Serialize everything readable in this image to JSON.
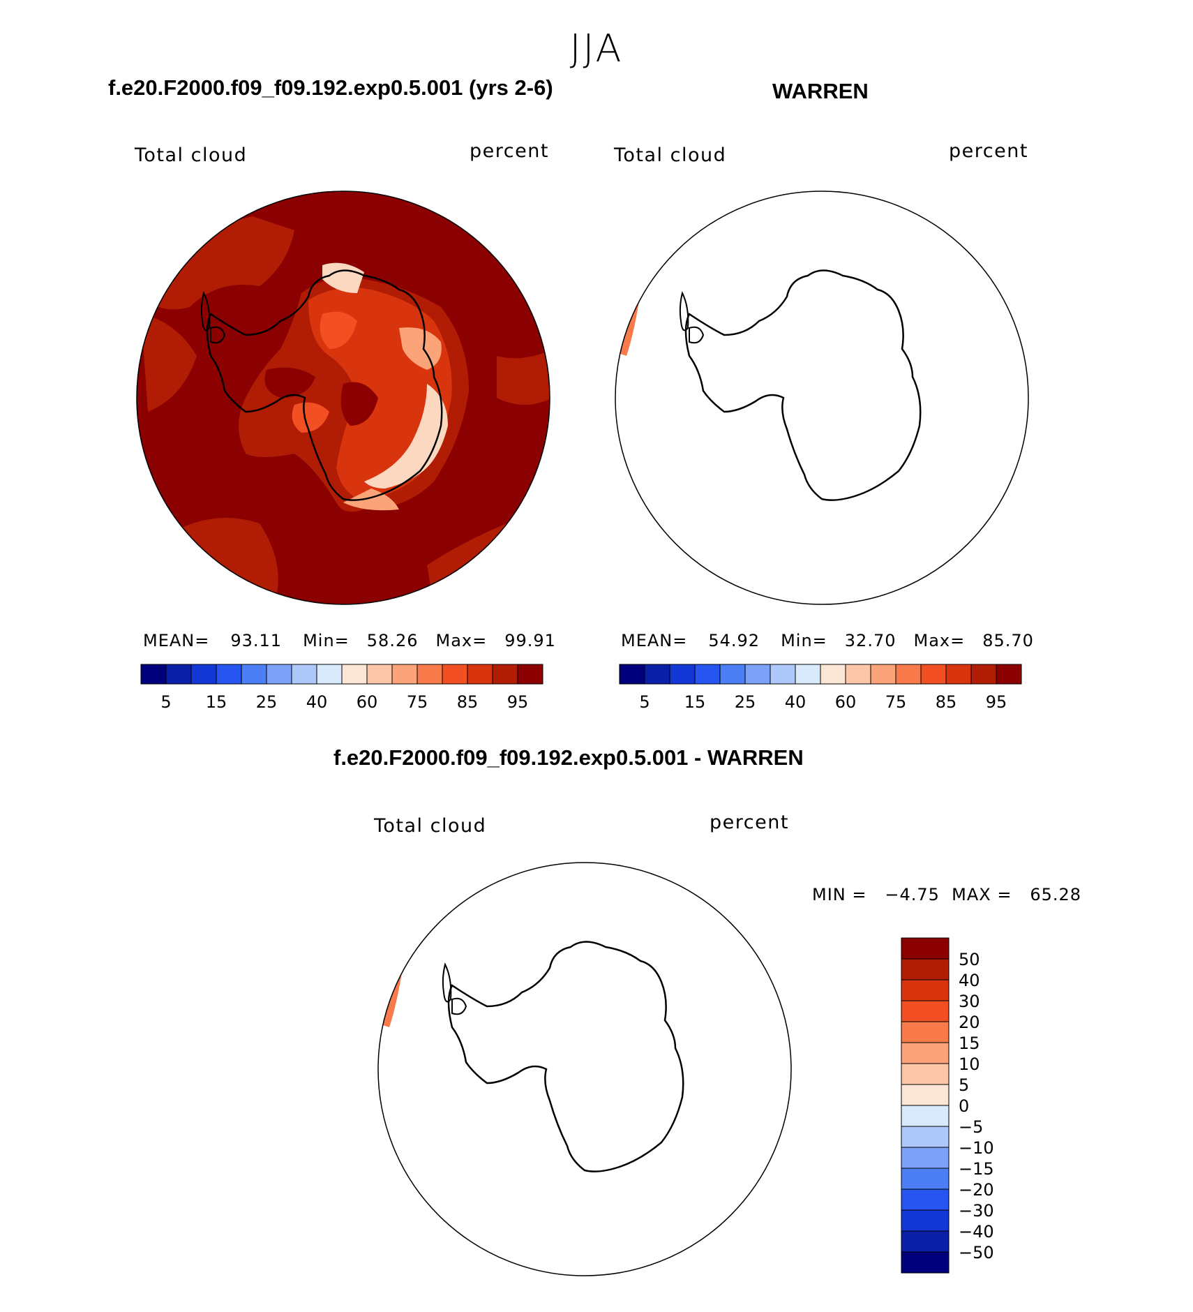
{
  "main_title": "JJA",
  "panel_left": {
    "title": "f.e20.F2000.f09_f09.192.exp0.5.001 (yrs 2-6)",
    "variable": "Total cloud",
    "units": "percent",
    "stats": {
      "mean_label": "MEAN=",
      "mean": "93.11",
      "min_label": "Min=",
      "min": "58.26",
      "max_label": "Max=",
      "max": "99.91"
    }
  },
  "panel_right": {
    "title": "WARREN",
    "variable": "Total cloud",
    "units": "percent",
    "stats": {
      "mean_label": "MEAN=",
      "mean": "54.92",
      "min_label": "Min=",
      "min": "32.70",
      "max_label": "Max=",
      "max": "85.70"
    }
  },
  "panel_diff": {
    "title": "f.e20.F2000.f09_f09.192.exp0.5.001 - WARREN",
    "variable": "Total cloud",
    "units": "percent",
    "minmax_text": "MIN =   −4.75  MAX =   65.28"
  },
  "abs_colorbar": {
    "colors": [
      "#00007a",
      "#0a1fa6",
      "#1337d6",
      "#2655f2",
      "#4c7ef6",
      "#7ba2f8",
      "#aec8fa",
      "#d9eafc",
      "#fbe6d6",
      "#fcc6a8",
      "#fba47a",
      "#f97a4a",
      "#f24f23",
      "#d8350e",
      "#b11c05",
      "#8b0000"
    ],
    "labels": [
      "5",
      "15",
      "25",
      "40",
      "60",
      "75",
      "85",
      "95"
    ]
  },
  "diff_colorbar": {
    "colors_top_to_bottom": [
      "#8b0000",
      "#b11c05",
      "#d8350e",
      "#f24f23",
      "#f97a4a",
      "#fba47a",
      "#fcc6a8",
      "#fbe6d6",
      "#d9eafc",
      "#aec8fa",
      "#7ba2f8",
      "#4c7ef6",
      "#2655f2",
      "#1337d6",
      "#0a1fa6",
      "#00007a"
    ],
    "labels": [
      "50",
      "40",
      "30",
      "20",
      "15",
      "10",
      "5",
      "0",
      "−5",
      "−10",
      "−15",
      "−20",
      "−30",
      "−40",
      "−50"
    ]
  },
  "map_colors": {
    "dark": "#8b0000",
    "mid": "#b11c05",
    "orange": "#d8350e",
    "bright": "#f24f23",
    "salmon": "#fba47a",
    "pale": "#fcd8c0",
    "strip": "#f97a4a"
  }
}
